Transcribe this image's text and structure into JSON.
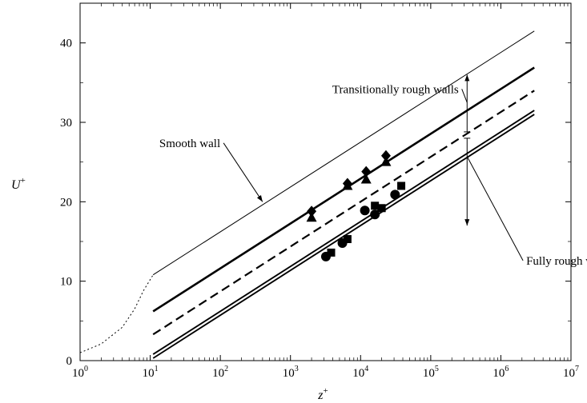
{
  "chart_data": {
    "type": "line",
    "x_scale": "log",
    "xlim": [
      1,
      10000000
    ],
    "ylim": [
      0,
      45
    ],
    "xlabel": "z",
    "xlabel_sup": "+",
    "ylabel": "U",
    "ylabel_sup": "+",
    "x_ticks": [
      {
        "base": "10",
        "exp": "0"
      },
      {
        "base": "10",
        "exp": "1"
      },
      {
        "base": "10",
        "exp": "2"
      },
      {
        "base": "10",
        "exp": "3"
      },
      {
        "base": "10",
        "exp": "4"
      },
      {
        "base": "10",
        "exp": "5"
      },
      {
        "base": "10",
        "exp": "6"
      },
      {
        "base": "10",
        "exp": "7"
      }
    ],
    "x_tick_values": [
      1,
      10,
      100,
      1000,
      10000,
      100000,
      1000000,
      10000000
    ],
    "y_ticks": [
      "0",
      "10",
      "20",
      "30",
      "40"
    ],
    "y_tick_values": [
      0,
      10,
      20,
      30,
      40
    ],
    "grid": false,
    "series": [
      {
        "style": "thin-solid",
        "points": [
          [
            11,
            10.8
          ],
          [
            3000000,
            41.5
          ]
        ]
      },
      {
        "style": "dotted",
        "points": [
          [
            1,
            1
          ],
          [
            2,
            2.1
          ],
          [
            4,
            4.2
          ],
          [
            6,
            6.5
          ],
          [
            8,
            8.8
          ],
          [
            11,
            10.8
          ]
        ]
      },
      {
        "style": "thick-solid",
        "points": [
          [
            11,
            6.2
          ],
          [
            3000000,
            36.9
          ]
        ]
      },
      {
        "style": "thick-dashed",
        "points": [
          [
            11,
            3.3
          ],
          [
            3000000,
            34.0
          ]
        ]
      },
      {
        "style": "solid",
        "points": [
          [
            11,
            0.8
          ],
          [
            3000000,
            31.5
          ]
        ]
      },
      {
        "style": "solid",
        "points": [
          [
            11,
            0.3
          ],
          [
            3000000,
            31.0
          ]
        ]
      }
    ],
    "markers": [
      {
        "shape": "diamond",
        "points": [
          [
            2000,
            18.8
          ],
          [
            6500,
            22.3
          ],
          [
            12000,
            23.8
          ],
          [
            23000,
            25.8
          ]
        ]
      },
      {
        "shape": "triangle",
        "points": [
          [
            2000,
            18.0
          ],
          [
            6500,
            22.0
          ],
          [
            12000,
            22.8
          ],
          [
            23000,
            25.0
          ]
        ]
      },
      {
        "shape": "circle",
        "points": [
          [
            3200,
            13.1
          ],
          [
            5500,
            14.8
          ],
          [
            11500,
            18.9
          ],
          [
            16000,
            18.4
          ],
          [
            31000,
            20.9
          ]
        ]
      },
      {
        "shape": "square",
        "points": [
          [
            3800,
            13.6
          ],
          [
            6500,
            15.3
          ],
          [
            16000,
            19.5
          ],
          [
            20000,
            19.2
          ],
          [
            38000,
            22.0
          ]
        ]
      }
    ],
    "arrows": [
      {
        "x": 330000,
        "from": 28.8,
        "to": 36.0
      },
      {
        "x": 330000,
        "from": 28.0,
        "to": 17.0
      }
    ],
    "annotations": [
      {
        "text": "Transitionally rough walls",
        "anchor_x": 250000,
        "anchor_y": 34.2,
        "target_x": 330000,
        "target_y": 32.5,
        "align": "end"
      },
      {
        "text": "Smooth wall",
        "anchor_x": 100,
        "anchor_y": 27.4,
        "target_x": 400,
        "target_y": 20.0,
        "align": "end"
      },
      {
        "text": "Fully rough walls",
        "anchor_x": 2300000,
        "anchor_y": 12.6,
        "target_x": 330000,
        "target_y": 25.7,
        "align": "start"
      }
    ]
  }
}
